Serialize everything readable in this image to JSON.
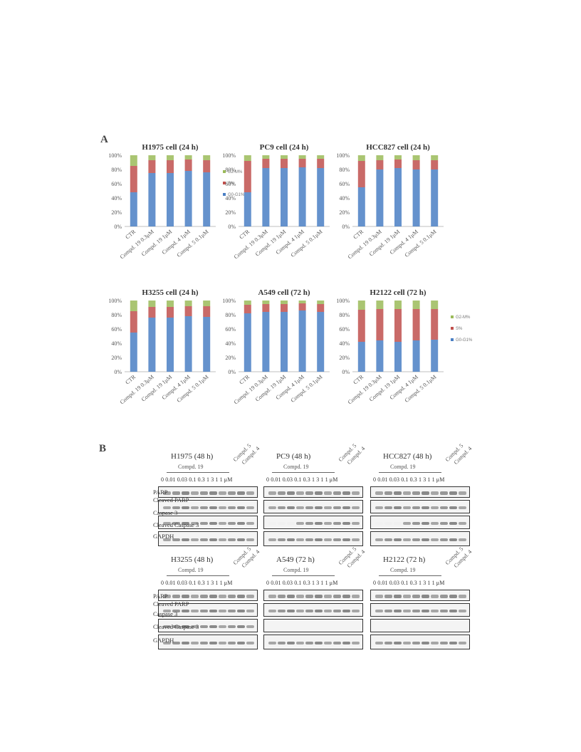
{
  "panel_a_label": "A",
  "panel_b_label": "B",
  "chart_data": [
    {
      "type": "bar",
      "stacked": true,
      "title": "H1975 cell (24 h)",
      "categories": [
        "CTR",
        "Compd. 19 0.3μM",
        "Compd. 19 1μM",
        "Compd. 4 1μM",
        "Compd. 5 0.1μM"
      ],
      "yticks": [
        "0%",
        "20%",
        "40%",
        "60%",
        "80%",
        "100%"
      ],
      "ylim": [
        0,
        100
      ],
      "series": [
        {
          "name": "G0-G1%",
          "color": "#4a7fc4",
          "values": [
            48,
            75,
            75,
            78,
            76
          ]
        },
        {
          "name": "S%",
          "color": "#c0504d",
          "values": [
            37,
            18,
            18,
            16,
            17
          ]
        },
        {
          "name": "G2-M%",
          "color": "#9bbb59",
          "values": [
            15,
            7,
            7,
            6,
            7
          ]
        }
      ],
      "legend": true
    },
    {
      "type": "bar",
      "stacked": true,
      "title": "PC9 cell (24 h)",
      "categories": [
        "CTR",
        "Compd. 19 0.3μM",
        "Compd. 19 1μM",
        "Compd. 4 1μM",
        "Compd. 5 0.1μM"
      ],
      "yticks": [
        "0%",
        "20%",
        "40%",
        "60%",
        "80%",
        "100%"
      ],
      "ylim": [
        0,
        100
      ],
      "series": [
        {
          "name": "G0-G1%",
          "color": "#4a7fc4",
          "values": [
            48,
            82,
            82,
            83,
            82
          ]
        },
        {
          "name": "S%",
          "color": "#c0504d",
          "values": [
            44,
            13,
            13,
            12,
            13
          ]
        },
        {
          "name": "G2-M%",
          "color": "#9bbb59",
          "values": [
            8,
            5,
            5,
            5,
            5
          ]
        }
      ],
      "legend": false
    },
    {
      "type": "bar",
      "stacked": true,
      "title": "HCC827 cell (24 h)",
      "categories": [
        "CTR",
        "Compd. 19 0.3μM",
        "Compd. 19 1μM",
        "Compd. 4 1μM",
        "Compd. 5 0.1μM"
      ],
      "yticks": [
        "0%",
        "20%",
        "40%",
        "60%",
        "80%",
        "100%"
      ],
      "ylim": [
        0,
        100
      ],
      "series": [
        {
          "name": "G0-G1%",
          "color": "#4a7fc4",
          "values": [
            55,
            80,
            82,
            80,
            80
          ]
        },
        {
          "name": "S%",
          "color": "#c0504d",
          "values": [
            37,
            13,
            12,
            13,
            13
          ]
        },
        {
          "name": "G2-M%",
          "color": "#9bbb59",
          "values": [
            8,
            7,
            6,
            7,
            7
          ]
        }
      ],
      "legend": false
    },
    {
      "type": "bar",
      "stacked": true,
      "title": "H3255 cell (24 h)",
      "categories": [
        "CTR",
        "Compd. 19 0.3μM",
        "Compd. 19 1μM",
        "Compd. 4 1μM",
        "Compd. 5 0.1μM"
      ],
      "yticks": [
        "0%",
        "20%",
        "40%",
        "60%",
        "80%",
        "100%"
      ],
      "ylim": [
        0,
        100
      ],
      "series": [
        {
          "name": "G0-G1%",
          "color": "#4a7fc4",
          "values": [
            55,
            76,
            76,
            78,
            77
          ]
        },
        {
          "name": "S%",
          "color": "#c0504d",
          "values": [
            30,
            15,
            15,
            14,
            15
          ]
        },
        {
          "name": "G2-M%",
          "color": "#9bbb59",
          "values": [
            15,
            9,
            9,
            8,
            8
          ]
        }
      ],
      "legend": false
    },
    {
      "type": "bar",
      "stacked": true,
      "title": "A549 cell (72 h)",
      "categories": [
        "CTR",
        "Compd. 19 0.3μM",
        "Compd. 19 1μM",
        "Compd. 4 1μM",
        "Compd. 5 0.1μM"
      ],
      "yticks": [
        "0%",
        "20%",
        "40%",
        "60%",
        "80%",
        "100%"
      ],
      "ylim": [
        0,
        100
      ],
      "series": [
        {
          "name": "G0-G1%",
          "color": "#4a7fc4",
          "values": [
            82,
            84,
            84,
            86,
            84
          ]
        },
        {
          "name": "S%",
          "color": "#c0504d",
          "values": [
            12,
            11,
            11,
            10,
            11
          ]
        },
        {
          "name": "G2-M%",
          "color": "#9bbb59",
          "values": [
            6,
            5,
            5,
            4,
            5
          ]
        }
      ],
      "legend": false
    },
    {
      "type": "bar",
      "stacked": true,
      "title": "H2122 cell (72 h)",
      "categories": [
        "CTR",
        "Compd. 19 0.3μM",
        "Compd. 19 1μM",
        "Compd. 4 1μM",
        "Compd. 5 0.1μM"
      ],
      "yticks": [
        "0%",
        "20%",
        "40%",
        "60%",
        "80%",
        "100%"
      ],
      "ylim": [
        0,
        100
      ],
      "series": [
        {
          "name": "G0-G1%",
          "color": "#4a7fc4",
          "values": [
            42,
            44,
            42,
            44,
            45
          ]
        },
        {
          "name": "S%",
          "color": "#c0504d",
          "values": [
            45,
            44,
            46,
            44,
            43
          ]
        },
        {
          "name": "G2-M%",
          "color": "#9bbb59",
          "values": [
            13,
            12,
            12,
            12,
            12
          ]
        }
      ],
      "legend": true
    }
  ],
  "blots": {
    "dose_labels": "0 0.01 0.03 0.1 0.3 1  3  1  1 μM",
    "dose_labels_short": "0 0.01 0.03 0.1 0.3 1  3  1  1",
    "compd19": "Compd. 19",
    "compd5": "Compd. 5",
    "compd4": "Compd. 4",
    "row_labels_top": [
      "PARP",
      "Cleaved PARP",
      "Caspase 3",
      "Cleaved Caspase 3",
      "GAPDH"
    ],
    "row_labels_bottom": [
      "PARP",
      "Cleaved PARP",
      "Caspase 3",
      "Cleaved Caspase 3",
      "GAPDH"
    ],
    "titles": [
      "H1975  (48 h)",
      "PC9  (48 h)",
      "HCC827  (48 h)",
      "H3255  (48 h)",
      "A549  (72 h)",
      "H2122  (72 h)"
    ]
  }
}
